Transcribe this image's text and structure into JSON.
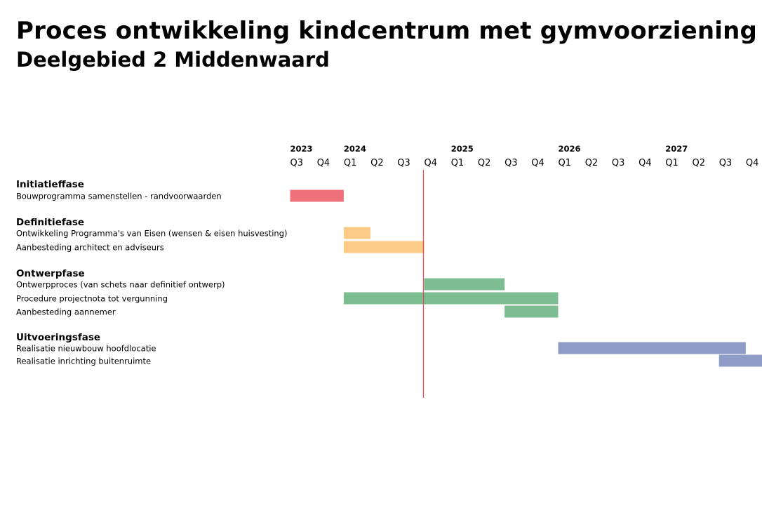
{
  "title": "Proces ontwikkeling kindcentrum met gymvoorziening",
  "subtitle": "Deelgebied 2 Middenwaard",
  "chart_data": {
    "type": "gantt",
    "time_unit": "quarter",
    "quarters": [
      {
        "year": "2023",
        "q": "Q3"
      },
      {
        "year": "2023",
        "q": "Q4"
      },
      {
        "year": "2024",
        "q": "Q1"
      },
      {
        "year": "2024",
        "q": "Q2"
      },
      {
        "year": "2024",
        "q": "Q3"
      },
      {
        "year": "2024",
        "q": "Q4"
      },
      {
        "year": "2025",
        "q": "Q1"
      },
      {
        "year": "2025",
        "q": "Q2"
      },
      {
        "year": "2025",
        "q": "Q3"
      },
      {
        "year": "2025",
        "q": "Q4"
      },
      {
        "year": "2026",
        "q": "Q1"
      },
      {
        "year": "2026",
        "q": "Q2"
      },
      {
        "year": "2026",
        "q": "Q3"
      },
      {
        "year": "2026",
        "q": "Q4"
      },
      {
        "year": "2027",
        "q": "Q1"
      },
      {
        "year": "2027",
        "q": "Q2"
      },
      {
        "year": "2027",
        "q": "Q3"
      },
      {
        "year": "2027",
        "q": "Q4"
      }
    ],
    "year_labels": [
      "2023",
      "2024",
      "2025",
      "2026",
      "2027"
    ],
    "today_marker": "2024-Q3 (einde)",
    "colors": {
      "initiatie": "#f0707a",
      "definitie": "#fccb88",
      "ontwerp": "#7cbd92",
      "uitvoering": "#8f9cc8",
      "today_line": "#e8474f"
    },
    "phases": [
      {
        "name": "Initiatieffase",
        "color_key": "initiatie",
        "tasks": [
          {
            "label": "Bouwprogramma samenstellen - randvoorwaarden",
            "start": "2023-Q3",
            "end": "2023-Q4"
          }
        ]
      },
      {
        "name": "Definitiefase",
        "color_key": "definitie",
        "tasks": [
          {
            "label": "Ontwikkeling Programma's van Eisen (wensen & eisen huisvesting)",
            "start": "2024-Q1",
            "end": "2024-Q1"
          },
          {
            "label": "Aanbesteding architect en adviseurs",
            "start": "2024-Q1",
            "end": "2024-Q3"
          }
        ]
      },
      {
        "name": "Ontwerpfase",
        "color_key": "ontwerp",
        "tasks": [
          {
            "label": "Ontwerpproces (van schets naar definitief ontwerp)",
            "start": "2024-Q4",
            "end": "2025-Q2"
          },
          {
            "label": "Procedure projectnota tot vergunning",
            "start": "2024-Q1",
            "end": "2025-Q4"
          },
          {
            "label": "Aanbesteding aannemer",
            "start": "2025-Q3",
            "end": "2025-Q4"
          }
        ]
      },
      {
        "name": "Uitvoeringsfase",
        "color_key": "uitvoering",
        "tasks": [
          {
            "label": "Realisatie nieuwbouw hoofdlocatie",
            "start": "2026-Q1",
            "end": "2027-Q3"
          },
          {
            "label": "Realisatie inrichting buitenruimte",
            "start": "2027-Q3",
            "end": "2027-Q4"
          }
        ]
      }
    ]
  }
}
